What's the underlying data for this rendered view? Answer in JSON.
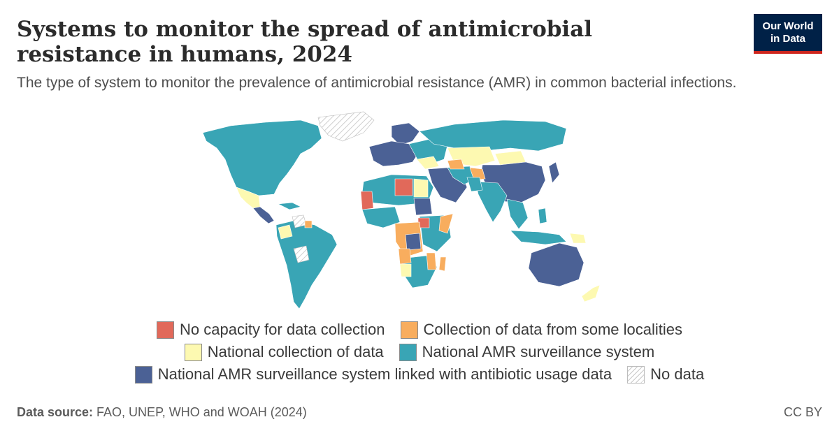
{
  "title": "Systems to monitor the spread of antimicrobial resistance in humans, 2024",
  "subtitle": "The type of system to monitor the prevalence of antimicrobial resistance (AMR) in common bacterial infections.",
  "logo": {
    "line1": "Our World",
    "line2": "in Data"
  },
  "colors": {
    "no_capacity": "#e1695a",
    "some_localities": "#f8ad5e",
    "national_collection": "#fdf9b1",
    "national_surveillance": "#39a5b5",
    "linked_usage": "#4b6195",
    "no_data": "#ffffff"
  },
  "legend": {
    "no_capacity": "No capacity for data collection",
    "some_localities": "Collection of data from some localities",
    "national_collection": "National collection of data",
    "national_surveillance": "National AMR surveillance system",
    "linked_usage": "National AMR surveillance system linked with antibiotic usage data",
    "no_data": "No data"
  },
  "footer": {
    "source_label": "Data source:",
    "source_text": " FAO, UNEP, WHO and WOAH (2024)",
    "license": "CC BY"
  }
}
